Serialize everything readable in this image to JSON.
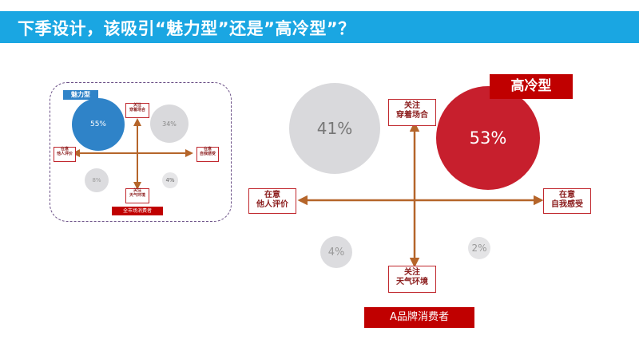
{
  "header": {
    "title": "下季设计，该吸引“魅力型”还是”高冷型”？"
  },
  "small_chart": {
    "tag": "魅力型",
    "bubbles": [
      "55%",
      "34%",
      "8%",
      "4%"
    ],
    "labels": {
      "top": [
        "关注",
        "穿着场合"
      ],
      "bottom": [
        "关注",
        "天气环境"
      ],
      "left": [
        "在意",
        "他人评价"
      ],
      "right": [
        "在意",
        "自我感受"
      ]
    },
    "footer": "全市场消费者"
  },
  "big_chart": {
    "tag": "高冷型",
    "bubbles": [
      "41%",
      "53%",
      "4%",
      "2%"
    ],
    "labels": {
      "top": [
        "关注",
        "穿着场合"
      ],
      "bottom": [
        "关注",
        "天气环境"
      ],
      "left": [
        "在意",
        "他人评价"
      ],
      "right": [
        "在意",
        "自我感受"
      ]
    },
    "footer": "A品牌消费者"
  },
  "colors": {
    "header": "#1aa6e2",
    "red": "#c00000",
    "blue": "#2f83c8",
    "grey": "#d9d9dc",
    "axis": "#b5652a"
  }
}
